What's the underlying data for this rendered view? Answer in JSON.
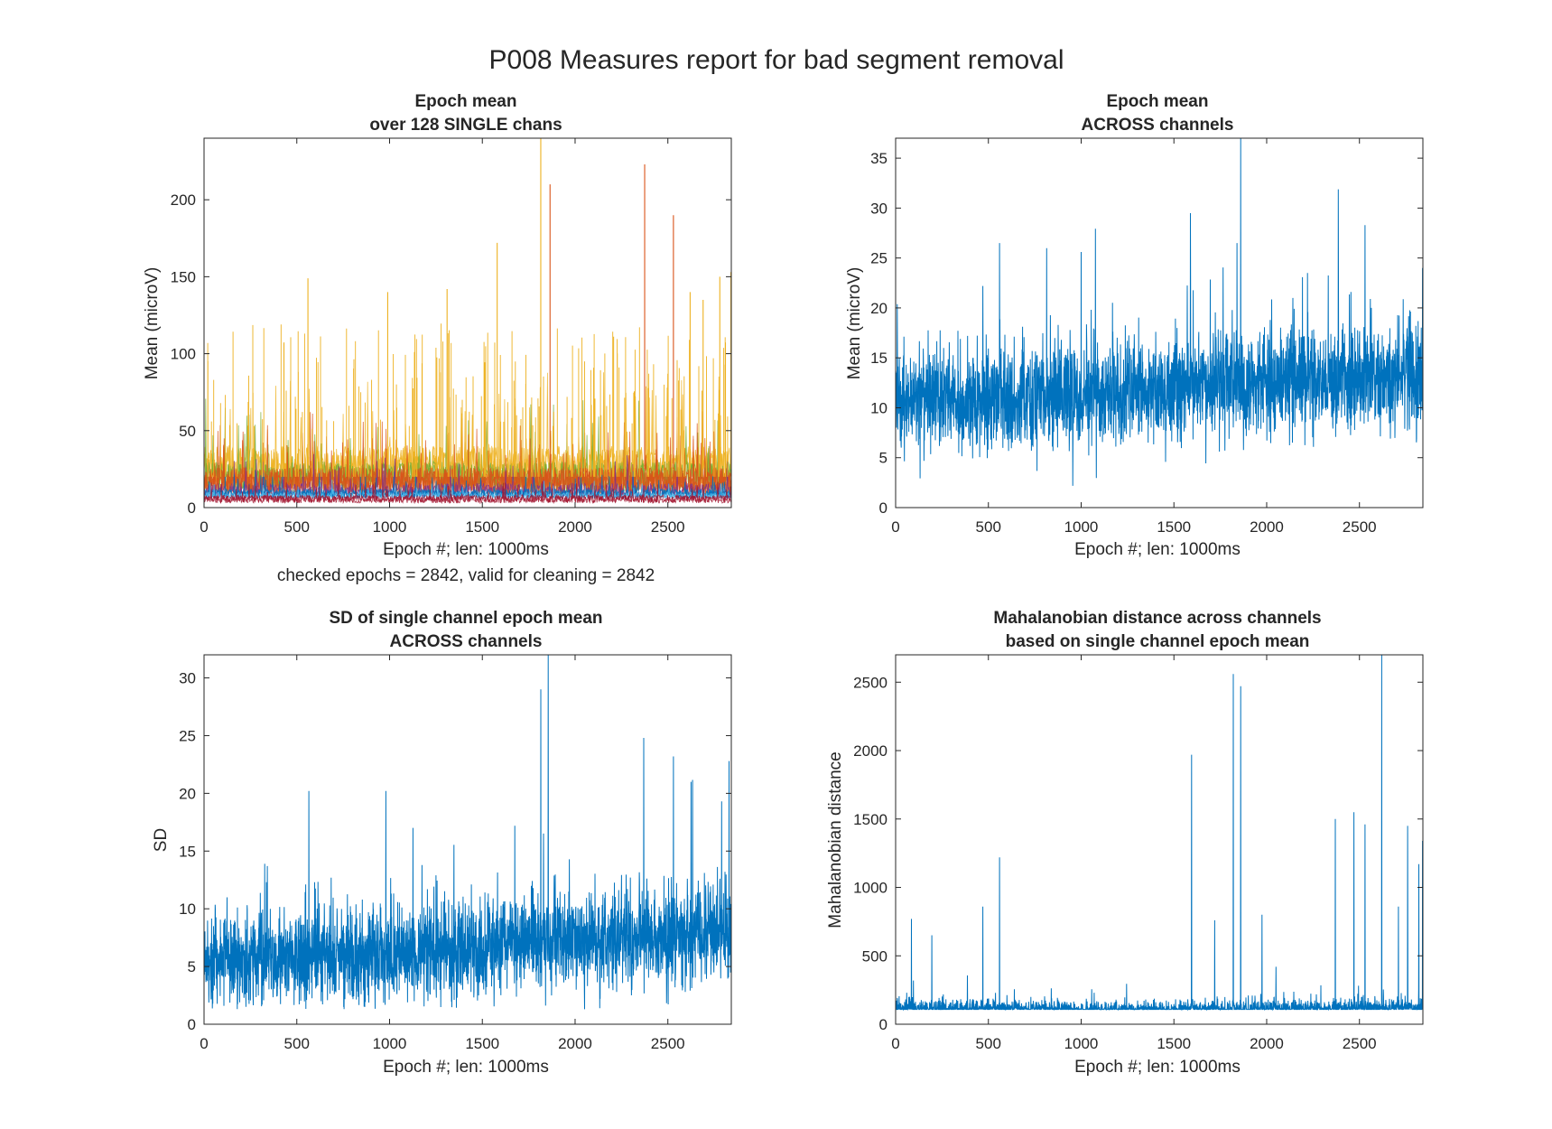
{
  "figure": {
    "title": "P008 Measures report for bad segment removal"
  },
  "chart_data": [
    {
      "type": "line",
      "title": [
        "Epoch mean",
        "over 128 SINGLE chans"
      ],
      "xlabel": "Epoch #; len: 1000ms",
      "ylabel": "Mean (microV)",
      "note": "checked epochs = 2842, valid for cleaning = 2842",
      "xlim": [
        0,
        2842
      ],
      "ylim": [
        0,
        240
      ],
      "xticks": [
        0,
        500,
        1000,
        1500,
        2000,
        2500
      ],
      "yticks": [
        0,
        50,
        100,
        150,
        200
      ],
      "n_epochs": 2842,
      "n_channels": 128,
      "series_style": "many-channels",
      "typical_range": [
        3,
        45
      ],
      "peaks": [
        {
          "x": 1815,
          "y": 240
        },
        {
          "x": 1865,
          "y": 210
        },
        {
          "x": 2375,
          "y": 223
        },
        {
          "x": 2530,
          "y": 190
        },
        {
          "x": 1580,
          "y": 172
        },
        {
          "x": 560,
          "y": 149
        },
        {
          "x": 2840,
          "y": 153
        },
        {
          "x": 1310,
          "y": 142
        },
        {
          "x": 990,
          "y": 140
        },
        {
          "x": 2620,
          "y": 140
        },
        {
          "x": 2780,
          "y": 150
        },
        {
          "x": 2690,
          "y": 135
        }
      ],
      "colors": [
        "#EDB120",
        "#77AC30",
        "#D95319",
        "#A2142F",
        "#0072BD",
        "#7E2F8E",
        "#4DBEEE"
      ]
    },
    {
      "type": "line",
      "title": [
        "Epoch mean",
        "ACROSS channels"
      ],
      "xlabel": "Epoch #; len: 1000ms",
      "ylabel": "Mean (microV)",
      "xlim": [
        0,
        2842
      ],
      "ylim": [
        0,
        37
      ],
      "xticks": [
        0,
        500,
        1000,
        1500,
        2000,
        2500
      ],
      "yticks": [
        0,
        5,
        10,
        15,
        20,
        25,
        30,
        35
      ],
      "n_epochs": 2842,
      "baseline": [
        [
          0,
          11
        ],
        [
          1000,
          11
        ],
        [
          1500,
          12
        ],
        [
          2000,
          12.5
        ],
        [
          2842,
          13
        ]
      ],
      "noise": 2.5,
      "peaks": [
        {
          "x": 1860,
          "y": 37
        },
        {
          "x": 560,
          "y": 26.5
        },
        {
          "x": 1000,
          "y": 25.6
        },
        {
          "x": 1840,
          "y": 26.5
        },
        {
          "x": 2530,
          "y": 28.3
        },
        {
          "x": 2220,
          "y": 23.5
        },
        {
          "x": 2840,
          "y": 24
        },
        {
          "x": 470,
          "y": 22.2
        },
        {
          "x": 1590,
          "y": 22
        }
      ],
      "color": "#0072BD"
    },
    {
      "type": "line",
      "title": [
        "SD of single channel epoch mean",
        "ACROSS channels"
      ],
      "xlabel": "Epoch #; len: 1000ms",
      "ylabel": "SD",
      "xlim": [
        0,
        2842
      ],
      "ylim": [
        0,
        32
      ],
      "xticks": [
        0,
        500,
        1000,
        1500,
        2000,
        2500
      ],
      "yticks": [
        0,
        5,
        10,
        15,
        20,
        25,
        30
      ],
      "n_epochs": 2842,
      "baseline": [
        [
          0,
          5.5
        ],
        [
          1000,
          6
        ],
        [
          1500,
          6.8
        ],
        [
          2000,
          7.3
        ],
        [
          2842,
          7.8
        ]
      ],
      "noise": 2,
      "peaks": [
        {
          "x": 1855,
          "y": 32
        },
        {
          "x": 1815,
          "y": 29
        },
        {
          "x": 2370,
          "y": 24.8
        },
        {
          "x": 2530,
          "y": 23.2
        },
        {
          "x": 2830,
          "y": 22.8
        },
        {
          "x": 565,
          "y": 20.2
        },
        {
          "x": 980,
          "y": 20.2
        },
        {
          "x": 2625,
          "y": 21
        },
        {
          "x": 2790,
          "y": 19.3
        }
      ],
      "color": "#0072BD"
    },
    {
      "type": "line",
      "title": [
        "Mahalanobian distance across channels",
        "based on single channel epoch mean"
      ],
      "xlabel": "Epoch #; len: 1000ms",
      "ylabel": "Mahalanobian distance",
      "xlim": [
        0,
        2842
      ],
      "ylim": [
        0,
        2700
      ],
      "xticks": [
        0,
        500,
        1000,
        1500,
        2000,
        2500
      ],
      "yticks": [
        0,
        500,
        1000,
        1500,
        2000,
        2500
      ],
      "n_epochs": 2842,
      "baseline": [
        [
          0,
          110
        ],
        [
          1000,
          100
        ],
        [
          1500,
          100
        ],
        [
          2000,
          110
        ],
        [
          2842,
          120
        ]
      ],
      "noise": 35,
      "peaks": [
        {
          "x": 2620,
          "y": 2700
        },
        {
          "x": 1820,
          "y": 2560
        },
        {
          "x": 1860,
          "y": 2470
        },
        {
          "x": 1595,
          "y": 1970
        },
        {
          "x": 2470,
          "y": 1550
        },
        {
          "x": 2370,
          "y": 1500
        },
        {
          "x": 2530,
          "y": 1460
        },
        {
          "x": 2760,
          "y": 1450
        },
        {
          "x": 2840,
          "y": 1340
        },
        {
          "x": 560,
          "y": 1220
        },
        {
          "x": 2820,
          "y": 1170
        },
        {
          "x": 470,
          "y": 860
        },
        {
          "x": 1975,
          "y": 800
        },
        {
          "x": 85,
          "y": 770
        },
        {
          "x": 1720,
          "y": 760
        },
        {
          "x": 195,
          "y": 650
        },
        {
          "x": 2710,
          "y": 860
        },
        {
          "x": 2050,
          "y": 420
        }
      ],
      "color": "#0072BD"
    }
  ]
}
